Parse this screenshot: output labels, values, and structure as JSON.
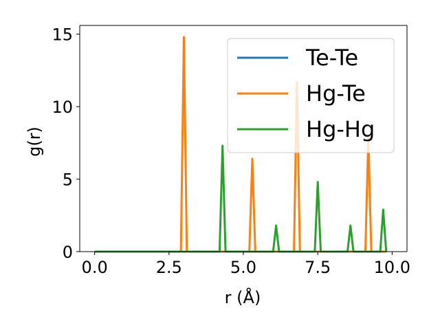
{
  "chart_data": {
    "type": "line",
    "xlabel": "r (Å)",
    "ylabel": "g(r)",
    "xlim": [
      -0.5,
      10.5
    ],
    "ylim": [
      0,
      15.6
    ],
    "xticks": [
      0.0,
      2.5,
      5.0,
      7.5,
      10.0
    ],
    "xtick_labels": [
      "0.0",
      "2.5",
      "5.0",
      "7.5",
      "10.0"
    ],
    "yticks": [
      0,
      5,
      10,
      15
    ],
    "ytick_labels": [
      "0",
      "5",
      "10",
      "15"
    ],
    "grid": false,
    "legend": "top-right",
    "series": [
      {
        "name": "Te-Te",
        "color": "#1f77b4",
        "x": [
          0.0,
          4.2,
          4.3,
          4.4,
          9.8
        ],
        "y": [
          0,
          0,
          0,
          0,
          0
        ]
      },
      {
        "name": "Hg-Te",
        "color": "#ff7f0e",
        "x": [
          0.0,
          2.9,
          3.0,
          3.1,
          5.2,
          5.3,
          5.4,
          6.7,
          6.8,
          6.9,
          9.1,
          9.2,
          9.3,
          9.8
        ],
        "y": [
          0,
          0,
          14.8,
          0,
          0,
          6.4,
          0,
          0,
          11.7,
          0,
          0,
          7.9,
          0,
          0
        ]
      },
      {
        "name": "Hg-Hg",
        "color": "#2ca02c",
        "x": [
          0.0,
          4.2,
          4.3,
          4.4,
          6.0,
          6.1,
          6.2,
          7.4,
          7.5,
          7.6,
          8.5,
          8.6,
          8.7,
          9.6,
          9.7,
          9.8
        ],
        "y": [
          0,
          0,
          7.3,
          0,
          0,
          1.8,
          0,
          0,
          4.8,
          0,
          0,
          1.8,
          0,
          0,
          2.9,
          0
        ]
      }
    ]
  }
}
